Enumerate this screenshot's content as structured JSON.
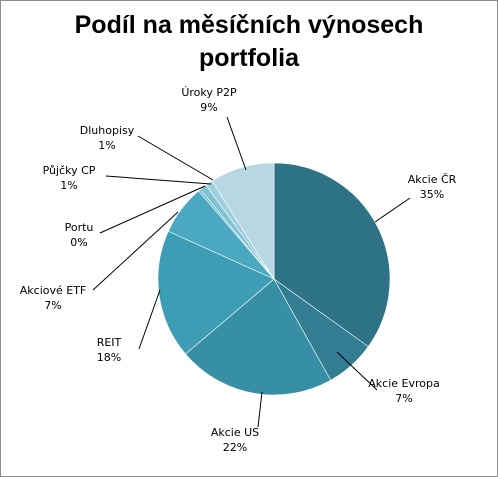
{
  "chart_data": {
    "type": "pie",
    "title_lines": [
      "Podíl na měsíčních výnosech",
      "portfolia"
    ],
    "slices": [
      {
        "label": "Akcie ČR",
        "value_label": "35%",
        "value": 35,
        "color": "#2e7385"
      },
      {
        "label": "Akcie Evropa",
        "value_label": "7%",
        "value": 7,
        "color": "#337d93"
      },
      {
        "label": "Akcie US",
        "value_label": "22%",
        "value": 22,
        "color": "#368fa5"
      },
      {
        "label": "REIT",
        "value_label": "18%",
        "value": 18,
        "color": "#3d9db5"
      },
      {
        "label": "Akciové ETF",
        "value_label": "7%",
        "value": 7,
        "color": "#4aa8c0"
      },
      {
        "label": "Portu",
        "value_label": "0%",
        "value": 0.3,
        "color": "#5bb3c9"
      },
      {
        "label": "Půjčky CP",
        "value_label": "1%",
        "value": 1,
        "color": "#7fc2d3"
      },
      {
        "label": "Dluhopisy",
        "value_label": "1%",
        "value": 1,
        "color": "#9dcfdc"
      },
      {
        "label": "Úroky P2P",
        "value_label": "9%",
        "value": 9,
        "color": "#b7d8e3"
      }
    ],
    "legend": "none",
    "data_labels": "outside with leader lines"
  }
}
